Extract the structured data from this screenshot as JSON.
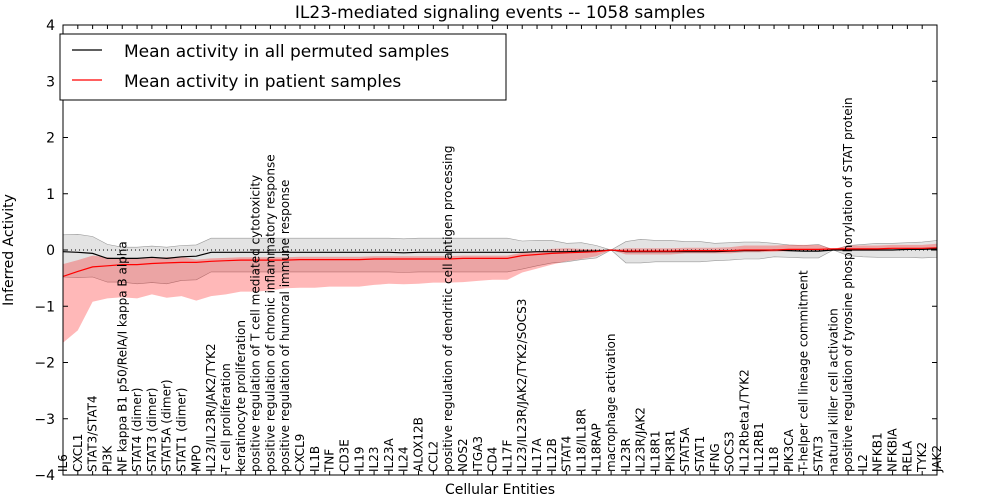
{
  "chart_data": {
    "type": "line",
    "title": "IL23-mediated signaling events -- 1058 samples",
    "xlabel": "Cellular Entities",
    "ylabel": "Inferred Activity",
    "ylim": [
      -4,
      4
    ],
    "yticks": [
      -4,
      -3,
      -2,
      -1,
      0,
      1,
      2,
      3,
      4
    ],
    "grid": false,
    "legend_position": "top-left",
    "categories": [
      "IL6",
      "CXCL1",
      "STAT3/STAT4",
      "PI3K",
      "NF kappa B1 p50/RelA/I kappa B alpha",
      "STAT4 (dimer)",
      "STAT3 (dimer)",
      "STAT5A (dimer)",
      "STAT1 (dimer)",
      "MPO",
      "IL23/IL23R/JAK2/TYK2",
      "T cell proliferation",
      "keratinocyte proliferation",
      "positive regulation of T cell mediated cytotoxicity",
      "positive regulation of chronic inflammatory response",
      "positive regulation of humoral immune response",
      "CXCL9",
      "IL1B",
      "TNF",
      "CD3E",
      "IL19",
      "IL23",
      "IL23A",
      "IL24",
      "ALOX12B",
      "CCL2",
      "positive regulation of dendritic cell antigen processing",
      "NOS2",
      "ITGA3",
      "CD4",
      "IL17F",
      "IL23/IL23R/JAK2/TYK2/SOCS3",
      "IL17A",
      "IL12B",
      "STAT4",
      "IL18/IL18R",
      "IL18RAP",
      "macrophage activation",
      "IL23R",
      "IL23R/JAK2",
      "IL18R1",
      "PIK3R1",
      "STAT5A",
      "STAT1",
      "IFNG",
      "SOCS3",
      "IL12Rbeta1/TYK2",
      "IL12RB1",
      "IL18",
      "PIK3CA",
      "T-helper cell lineage commitment",
      "STAT3",
      "natural killer cell activation",
      "positive regulation of tyrosine phosphorylation of STAT protein",
      "IL2",
      "NFKB1",
      "NFKBIA",
      "RELA",
      "TYK2",
      "JAK2"
    ],
    "series": [
      {
        "name": "Mean activity in all permuted samples",
        "color": "#000000",
        "values": [
          -0.03,
          -0.04,
          -0.06,
          -0.15,
          -0.15,
          -0.15,
          -0.13,
          -0.15,
          -0.12,
          -0.11,
          -0.04,
          -0.04,
          -0.04,
          -0.04,
          -0.04,
          -0.04,
          -0.04,
          -0.04,
          -0.04,
          -0.04,
          -0.04,
          -0.04,
          -0.04,
          -0.05,
          -0.04,
          -0.04,
          -0.04,
          -0.04,
          -0.04,
          -0.04,
          -0.04,
          -0.04,
          -0.03,
          -0.03,
          -0.03,
          -0.02,
          -0.02,
          0.0,
          -0.03,
          -0.03,
          -0.03,
          -0.03,
          -0.03,
          -0.03,
          -0.03,
          -0.02,
          -0.01,
          -0.01,
          0.0,
          -0.01,
          -0.02,
          -0.02,
          0.0,
          0.0,
          0.0,
          0.0,
          0.0,
          0.01,
          0.01,
          0.02
        ],
        "band_lower": [
          0.3,
          0.32,
          0.3,
          0.25,
          0.2,
          0.2,
          0.2,
          0.2,
          0.2,
          0.2,
          0.25,
          0.25,
          0.25,
          0.25,
          0.25,
          0.25,
          0.25,
          0.25,
          0.25,
          0.25,
          0.25,
          0.25,
          0.25,
          0.25,
          0.25,
          0.25,
          0.25,
          0.25,
          0.25,
          0.25,
          0.25,
          0.2,
          0.2,
          0.2,
          0.15,
          0.15,
          0.1,
          0.0,
          0.18,
          0.22,
          0.2,
          0.2,
          0.18,
          0.18,
          0.15,
          0.15,
          0.15,
          0.15,
          0.12,
          0.1,
          0.1,
          0.12,
          0.0,
          0.08,
          0.1,
          0.12,
          0.12,
          0.12,
          0.13,
          0.15
        ],
        "band_upper": [
          -0.45,
          -0.45,
          -0.42,
          -0.42,
          -0.42,
          -0.45,
          -0.45,
          -0.45,
          -0.42,
          -0.42,
          -0.35,
          -0.35,
          -0.35,
          -0.35,
          -0.35,
          -0.35,
          -0.35,
          -0.35,
          -0.35,
          -0.35,
          -0.35,
          -0.35,
          -0.35,
          -0.35,
          -0.35,
          -0.35,
          -0.35,
          -0.35,
          -0.35,
          -0.35,
          -0.35,
          -0.3,
          -0.25,
          -0.2,
          -0.18,
          -0.15,
          -0.12,
          0.0,
          -0.2,
          -0.2,
          -0.18,
          -0.18,
          -0.18,
          -0.18,
          -0.16,
          -0.16,
          -0.15,
          -0.15,
          -0.12,
          -0.12,
          -0.12,
          -0.12,
          0.0,
          -0.1,
          -0.12,
          -0.13,
          -0.13,
          -0.14,
          -0.15,
          -0.15
        ]
      },
      {
        "name": "Mean activity in patient samples",
        "color": "#ff0000",
        "values": [
          -0.47,
          -0.38,
          -0.3,
          -0.28,
          -0.26,
          -0.26,
          -0.24,
          -0.23,
          -0.22,
          -0.22,
          -0.2,
          -0.19,
          -0.18,
          -0.18,
          -0.18,
          -0.18,
          -0.17,
          -0.17,
          -0.17,
          -0.17,
          -0.17,
          -0.16,
          -0.16,
          -0.16,
          -0.16,
          -0.16,
          -0.16,
          -0.15,
          -0.15,
          -0.15,
          -0.15,
          -0.1,
          -0.08,
          -0.06,
          -0.05,
          -0.04,
          -0.03,
          0.0,
          -0.02,
          -0.02,
          -0.02,
          -0.02,
          -0.01,
          -0.01,
          -0.01,
          -0.01,
          0.0,
          0.0,
          0.0,
          0.01,
          0.01,
          0.01,
          0.02,
          0.02,
          0.02,
          0.02,
          0.03,
          0.03,
          0.03,
          0.04
        ],
        "band_lower": [
          0.22,
          0.2,
          0.2,
          0.15,
          0.1,
          0.1,
          0.1,
          0.1,
          0.1,
          0.05,
          0.05,
          0.05,
          0.05,
          0.05,
          0.05,
          0.05,
          0.05,
          0.05,
          0.05,
          0.05,
          0.05,
          0.05,
          0.05,
          0.05,
          0.05,
          0.05,
          0.05,
          0.05,
          0.05,
          0.05,
          0.05,
          0.05,
          0.05,
          0.08,
          0.08,
          0.06,
          0.04,
          0.0,
          0.05,
          0.05,
          0.05,
          0.05,
          0.05,
          0.05,
          0.05,
          0.06,
          0.08,
          0.08,
          0.08,
          0.08,
          0.08,
          0.08,
          0.0,
          0.06,
          0.06,
          0.06,
          0.06,
          0.06,
          0.06,
          0.07
        ],
        "band_upper": [
          -1.18,
          -1.05,
          -0.62,
          -0.58,
          -0.58,
          -0.6,
          -0.55,
          -0.62,
          -0.6,
          -0.68,
          -0.62,
          -0.6,
          -0.56,
          -0.56,
          -0.54,
          -0.5,
          -0.5,
          -0.5,
          -0.48,
          -0.48,
          -0.48,
          -0.46,
          -0.44,
          -0.45,
          -0.44,
          -0.42,
          -0.42,
          -0.42,
          -0.4,
          -0.38,
          -0.38,
          -0.3,
          -0.25,
          -0.2,
          -0.15,
          -0.12,
          -0.08,
          0.0,
          -0.06,
          -0.06,
          -0.06,
          -0.06,
          -0.05,
          -0.05,
          -0.05,
          -0.05,
          -0.04,
          -0.04,
          -0.03,
          -0.03,
          -0.03,
          -0.03,
          0.0,
          -0.03,
          -0.03,
          -0.03,
          -0.02,
          -0.02,
          -0.02,
          -0.02
        ]
      }
    ],
    "reference_line": {
      "y": 0,
      "style": "dotted"
    }
  }
}
